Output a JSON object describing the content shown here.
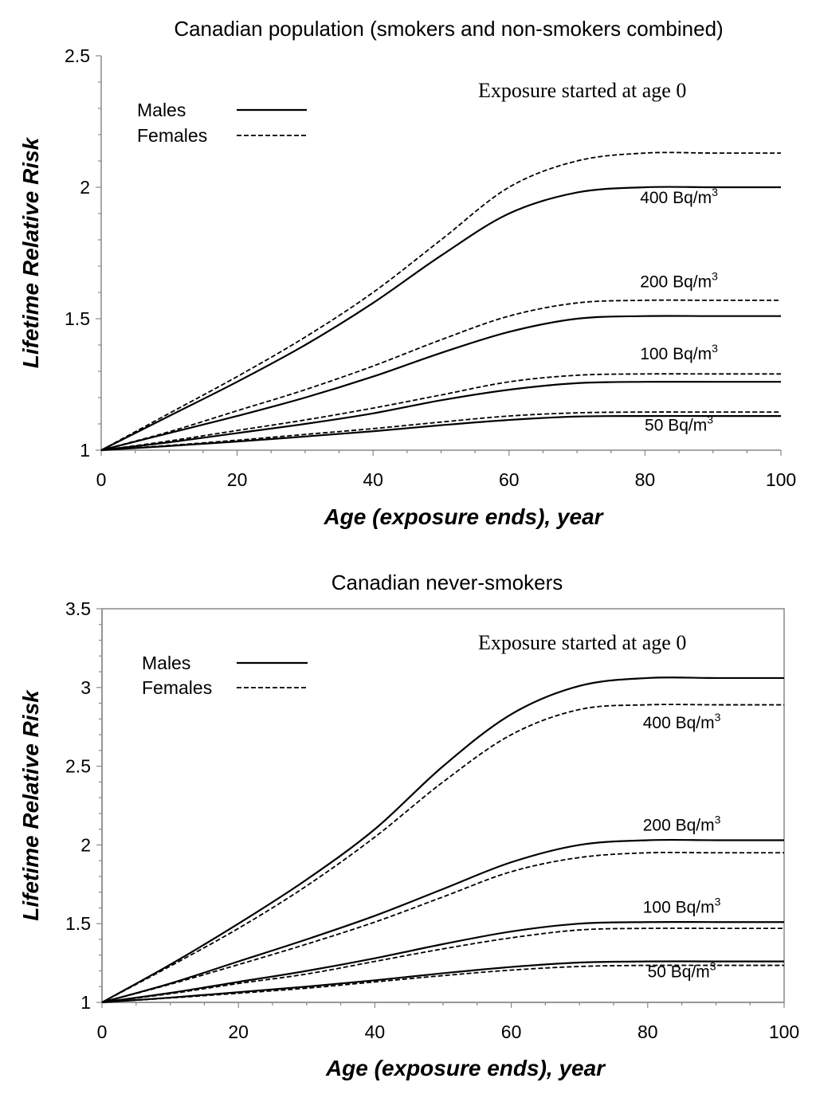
{
  "chart_data": [
    {
      "type": "line",
      "title": "Canadian population (smokers and non-smokers combined)",
      "xlabel": "Age (exposure ends), year",
      "ylabel": "Lifetime Relative Risk",
      "xlim": [
        0,
        100
      ],
      "ylim": [
        1,
        2.5
      ],
      "xticks": [
        0,
        20,
        40,
        60,
        80,
        100
      ],
      "yticks": [
        1,
        1.5,
        2,
        2.5
      ],
      "annotation": "Exposure started at age 0",
      "legend": [
        {
          "label": "Males",
          "style": "solid"
        },
        {
          "label": "Females",
          "style": "dashed"
        }
      ],
      "x": [
        0,
        10,
        20,
        30,
        40,
        50,
        60,
        70,
        80,
        90,
        100
      ],
      "series": [
        {
          "name": "Males 400 Bq/m3",
          "style": "solid",
          "plateau": 2.0,
          "values": [
            1.0,
            1.13,
            1.26,
            1.4,
            1.56,
            1.74,
            1.9,
            1.98,
            2.0,
            2.0,
            2.0
          ]
        },
        {
          "name": "Females 400 Bq/m3",
          "style": "dashed",
          "plateau": 2.13,
          "values": [
            1.0,
            1.14,
            1.28,
            1.43,
            1.6,
            1.8,
            2.0,
            2.1,
            2.13,
            2.13,
            2.13
          ]
        },
        {
          "name": "Males 200 Bq/m3",
          "style": "solid",
          "plateau": 1.51,
          "values": [
            1.0,
            1.065,
            1.13,
            1.2,
            1.28,
            1.37,
            1.45,
            1.5,
            1.51,
            1.51,
            1.51
          ]
        },
        {
          "name": "Females 200 Bq/m3",
          "style": "dashed",
          "plateau": 1.57,
          "values": [
            1.0,
            1.07,
            1.15,
            1.23,
            1.32,
            1.42,
            1.51,
            1.56,
            1.57,
            1.57,
            1.57
          ]
        },
        {
          "name": "Males 100 Bq/m3",
          "style": "solid",
          "plateau": 1.26,
          "values": [
            1.0,
            1.03,
            1.065,
            1.1,
            1.14,
            1.19,
            1.23,
            1.255,
            1.26,
            1.26,
            1.26
          ]
        },
        {
          "name": "Females 100 Bq/m3",
          "style": "dashed",
          "plateau": 1.29,
          "values": [
            1.0,
            1.035,
            1.075,
            1.115,
            1.16,
            1.21,
            1.26,
            1.285,
            1.29,
            1.29,
            1.29
          ]
        },
        {
          "name": "Males 50 Bq/m3",
          "style": "solid",
          "plateau": 1.13,
          "values": [
            1.0,
            1.016,
            1.033,
            1.052,
            1.072,
            1.095,
            1.115,
            1.128,
            1.13,
            1.13,
            1.13
          ]
        },
        {
          "name": "Females 50 Bq/m3",
          "style": "dashed",
          "plateau": 1.145,
          "values": [
            1.0,
            1.018,
            1.038,
            1.06,
            1.082,
            1.107,
            1.13,
            1.142,
            1.145,
            1.145,
            1.145
          ]
        }
      ],
      "curve_labels": [
        {
          "text": "400 Bq/m",
          "sup": "3",
          "x": 85,
          "y": 1.94
        },
        {
          "text": "200 Bq/m",
          "sup": "3",
          "x": 85,
          "y": 1.62
        },
        {
          "text": "100 Bq/m",
          "sup": "3",
          "x": 85,
          "y": 1.345
        },
        {
          "text": "50 Bq/m",
          "sup": "3",
          "x": 85,
          "y": 1.075
        }
      ]
    },
    {
      "type": "line",
      "title": "Canadian never-smokers",
      "xlabel": "Age (exposure ends), year",
      "ylabel": "Lifetime Relative Risk",
      "xlim": [
        0,
        100
      ],
      "ylim": [
        1,
        3.5
      ],
      "xticks": [
        0,
        20,
        40,
        60,
        80,
        100
      ],
      "yticks": [
        1,
        1.5,
        2,
        2.5,
        3,
        3.5
      ],
      "annotation": "Exposure started at age 0",
      "legend": [
        {
          "label": "Males",
          "style": "solid"
        },
        {
          "label": "Females",
          "style": "dashed"
        }
      ],
      "x": [
        0,
        10,
        20,
        30,
        40,
        50,
        60,
        70,
        80,
        90,
        100
      ],
      "series": [
        {
          "name": "Males 400 Bq/m3",
          "style": "solid",
          "plateau": 3.06,
          "values": [
            1.0,
            1.24,
            1.5,
            1.78,
            2.1,
            2.5,
            2.83,
            3.01,
            3.06,
            3.06,
            3.06
          ]
        },
        {
          "name": "Females 400 Bq/m3",
          "style": "dashed",
          "plateau": 2.89,
          "values": [
            1.0,
            1.23,
            1.47,
            1.74,
            2.05,
            2.4,
            2.7,
            2.86,
            2.89,
            2.89,
            2.89
          ]
        },
        {
          "name": "Males 200 Bq/m3",
          "style": "solid",
          "plateau": 2.03,
          "values": [
            1.0,
            1.12,
            1.26,
            1.4,
            1.55,
            1.72,
            1.89,
            2.0,
            2.03,
            2.03,
            2.03
          ]
        },
        {
          "name": "Females 200 Bq/m3",
          "style": "dashed",
          "plateau": 1.95,
          "values": [
            1.0,
            1.115,
            1.24,
            1.37,
            1.51,
            1.67,
            1.83,
            1.92,
            1.95,
            1.95,
            1.95
          ]
        },
        {
          "name": "Males 100 Bq/m3",
          "style": "solid",
          "plateau": 1.51,
          "values": [
            1.0,
            1.06,
            1.13,
            1.2,
            1.28,
            1.37,
            1.45,
            1.5,
            1.51,
            1.51,
            1.51
          ]
        },
        {
          "name": "Females 100 Bq/m3",
          "style": "dashed",
          "plateau": 1.47,
          "values": [
            1.0,
            1.055,
            1.12,
            1.18,
            1.26,
            1.34,
            1.41,
            1.46,
            1.47,
            1.47,
            1.47
          ]
        },
        {
          "name": "Males 50 Bq/m3",
          "style": "solid",
          "plateau": 1.26,
          "values": [
            1.0,
            1.03,
            1.065,
            1.1,
            1.14,
            1.185,
            1.225,
            1.253,
            1.26,
            1.26,
            1.26
          ]
        },
        {
          "name": "Females 50 Bq/m3",
          "style": "dashed",
          "plateau": 1.235,
          "values": [
            1.0,
            1.028,
            1.058,
            1.09,
            1.13,
            1.17,
            1.205,
            1.228,
            1.235,
            1.235,
            1.235
          ]
        }
      ],
      "curve_labels": [
        {
          "text": "400 Bq/m",
          "sup": "3",
          "x": 85,
          "y": 2.74
        },
        {
          "text": "200 Bq/m",
          "sup": "3",
          "x": 85,
          "y": 2.09
        },
        {
          "text": "100 Bq/m",
          "sup": "3",
          "x": 85,
          "y": 1.57
        },
        {
          "text": "50 Bq/m",
          "sup": "3",
          "x": 85,
          "y": 1.16
        }
      ]
    }
  ]
}
